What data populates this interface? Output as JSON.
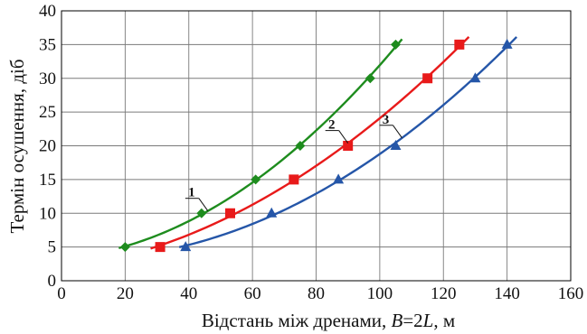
{
  "chart_data": {
    "type": "line",
    "title": "",
    "xlabel": {
      "prefix": "Відстань між дренами, ",
      "var1": "B",
      "mid": "=2",
      "var2": "L",
      "suffix": ", м"
    },
    "ylabel": "Термін осушення, діб",
    "xlim": [
      0,
      160
    ],
    "ylim": [
      0,
      40
    ],
    "xticks": [
      "0",
      "20",
      "40",
      "60",
      "80",
      "100",
      "120",
      "140",
      "160"
    ],
    "yticks": [
      "0",
      "5",
      "10",
      "15",
      "20",
      "25",
      "30",
      "35",
      "40"
    ],
    "grid": true,
    "series": [
      {
        "name": "1",
        "color": "#1e8c1e",
        "marker": "diamond",
        "x": [
          20,
          44,
          61,
          75,
          97,
          105
        ],
        "y": [
          5,
          10,
          15,
          20,
          30,
          35
        ],
        "curve_range": [
          18,
          107
        ]
      },
      {
        "name": "2",
        "color": "#e81a1a",
        "marker": "square",
        "x": [
          31,
          53,
          73,
          90,
          115,
          125
        ],
        "y": [
          5,
          10,
          15,
          20,
          30,
          35
        ],
        "curve_range": [
          28,
          128
        ]
      },
      {
        "name": "3",
        "color": "#2556a8",
        "marker": "triangle",
        "x": [
          39,
          66,
          87,
          105,
          130,
          140
        ],
        "y": [
          5,
          10,
          15,
          20,
          30,
          35
        ],
        "curve_range": [
          37,
          143
        ]
      }
    ]
  }
}
